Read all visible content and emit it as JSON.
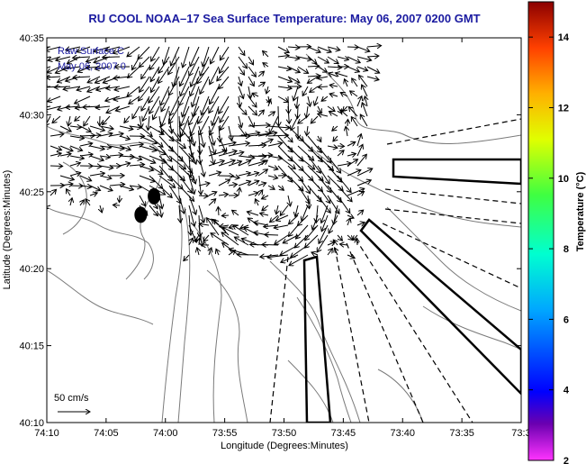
{
  "chart_data": {
    "type": "vector-field-map",
    "title": "RU COOL  NOAA–17  Sea Surface Temperature:  May 06, 2007 0200 GMT",
    "xlabel": "Longitude (Degrees:Minutes)",
    "ylabel": "Latitude (Degrees:Minutes)",
    "x_ticks": [
      "74:10",
      "74:05",
      "74:00",
      "73:55",
      "73:50",
      "73:45",
      "73:40",
      "73:35",
      "73:3"
    ],
    "y_ticks": [
      "40:35",
      "40:30",
      "40:25",
      "40:20",
      "40:15",
      "40:10"
    ],
    "legend_lines": [
      "Raw Surface C",
      "May 06, 2007 0"
    ],
    "scale_label": "50 cm/s",
    "colorbar": {
      "label": "Temperature (°C)",
      "ticks": [
        "14",
        "12",
        "10",
        "8",
        "6",
        "4",
        "2"
      ],
      "min": 2,
      "max": 15
    },
    "buoys": [
      {
        "lon_min": -0.96,
        "lat_min": 14.7
      },
      {
        "lon_min": -2.08,
        "lat_min": 13.5
      }
    ]
  }
}
